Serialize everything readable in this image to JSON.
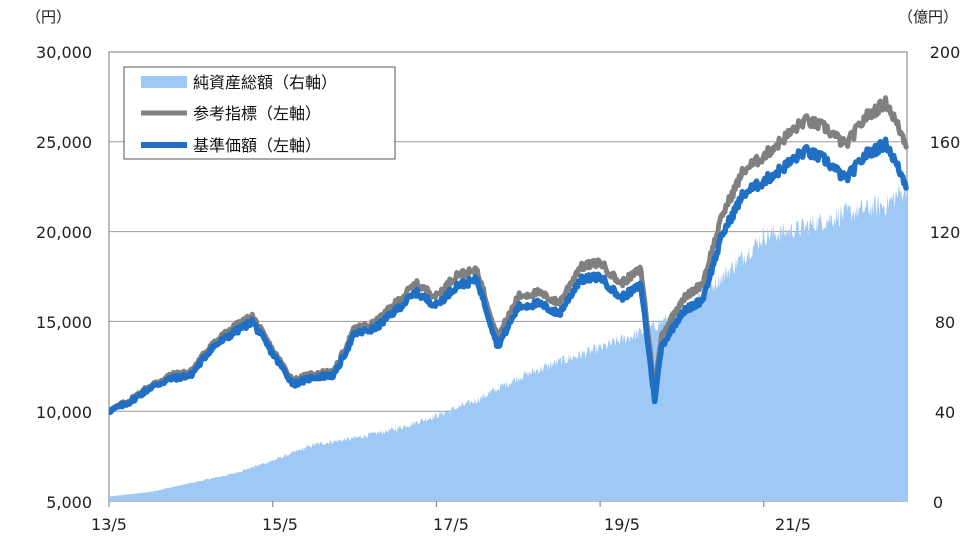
{
  "chart_data": {
    "type": "line+area",
    "left_unit": "（円）",
    "right_unit": "（億円）",
    "x_ticks": [
      "13/5",
      "15/5",
      "17/5",
      "19/5",
      "21/5"
    ],
    "left_ticks": [
      "30,000",
      "25,000",
      "20,000",
      "15,000",
      "10,000",
      "5,000"
    ],
    "right_ticks": [
      "200",
      "160",
      "120",
      "80",
      "40",
      "0"
    ],
    "ylim_left": [
      5000,
      30000
    ],
    "ylim_right": [
      0,
      200
    ],
    "grid": true,
    "legend_position": "top-left",
    "colors": {
      "area": "#9ec8f6",
      "benchmark": "#808080",
      "nav": "#1f6fc5"
    },
    "series": [
      {
        "name": "純資産総額（右軸）",
        "axis": "right",
        "style": "area",
        "x": [
          0,
          6,
          12,
          18,
          24,
          30,
          36,
          42,
          48,
          54,
          60,
          66,
          72,
          78,
          80,
          84,
          90,
          96,
          102,
          108,
          114,
          117
        ],
        "values": [
          2,
          4,
          8,
          12,
          18,
          25,
          28,
          32,
          38,
          45,
          55,
          62,
          68,
          75,
          78,
          85,
          100,
          118,
          122,
          128,
          132,
          140
        ]
      },
      {
        "name": "参考指標（左軸）",
        "axis": "left",
        "style": "line",
        "x": [
          0,
          3,
          6,
          9,
          12,
          15,
          18,
          21,
          24,
          27,
          30,
          33,
          36,
          39,
          42,
          45,
          48,
          51,
          54,
          57,
          60,
          63,
          66,
          69,
          72,
          75,
          78,
          79,
          80,
          81,
          84,
          87,
          90,
          93,
          96,
          99,
          102,
          105,
          108,
          111,
          114,
          117
        ],
        "values": [
          10000,
          10600,
          11400,
          12000,
          12200,
          13700,
          14600,
          15300,
          13400,
          11700,
          12100,
          12200,
          14600,
          14900,
          16000,
          17100,
          16400,
          17600,
          17800,
          14100,
          16400,
          16600,
          16000,
          18000,
          18300,
          17100,
          17900,
          14500,
          11200,
          14200,
          16200,
          17100,
          21000,
          23400,
          24200,
          25200,
          26200,
          25800,
          24800,
          26400,
          27200,
          24800
        ]
      },
      {
        "name": "基準価額（左軸）",
        "axis": "left",
        "style": "line",
        "x": [
          0,
          3,
          6,
          9,
          12,
          15,
          18,
          21,
          24,
          27,
          30,
          33,
          36,
          39,
          42,
          45,
          48,
          51,
          54,
          57,
          60,
          63,
          66,
          69,
          72,
          75,
          78,
          79,
          80,
          81,
          84,
          87,
          90,
          93,
          96,
          99,
          102,
          105,
          108,
          111,
          114,
          117
        ],
        "values": [
          10000,
          10500,
          11300,
          11800,
          12000,
          13500,
          14300,
          15000,
          13200,
          11500,
          11900,
          12000,
          14300,
          14600,
          15600,
          16600,
          15900,
          17000,
          17300,
          13600,
          15800,
          16000,
          15400,
          17300,
          17500,
          16300,
          17000,
          13800,
          10600,
          13600,
          15500,
          16200,
          19900,
          22100,
          22800,
          23600,
          24500,
          24000,
          22900,
          24300,
          24900,
          22500
        ]
      }
    ],
    "x_tick_positions": [
      0,
      24,
      48,
      72,
      96
    ],
    "x_range": [
      0,
      117
    ]
  }
}
